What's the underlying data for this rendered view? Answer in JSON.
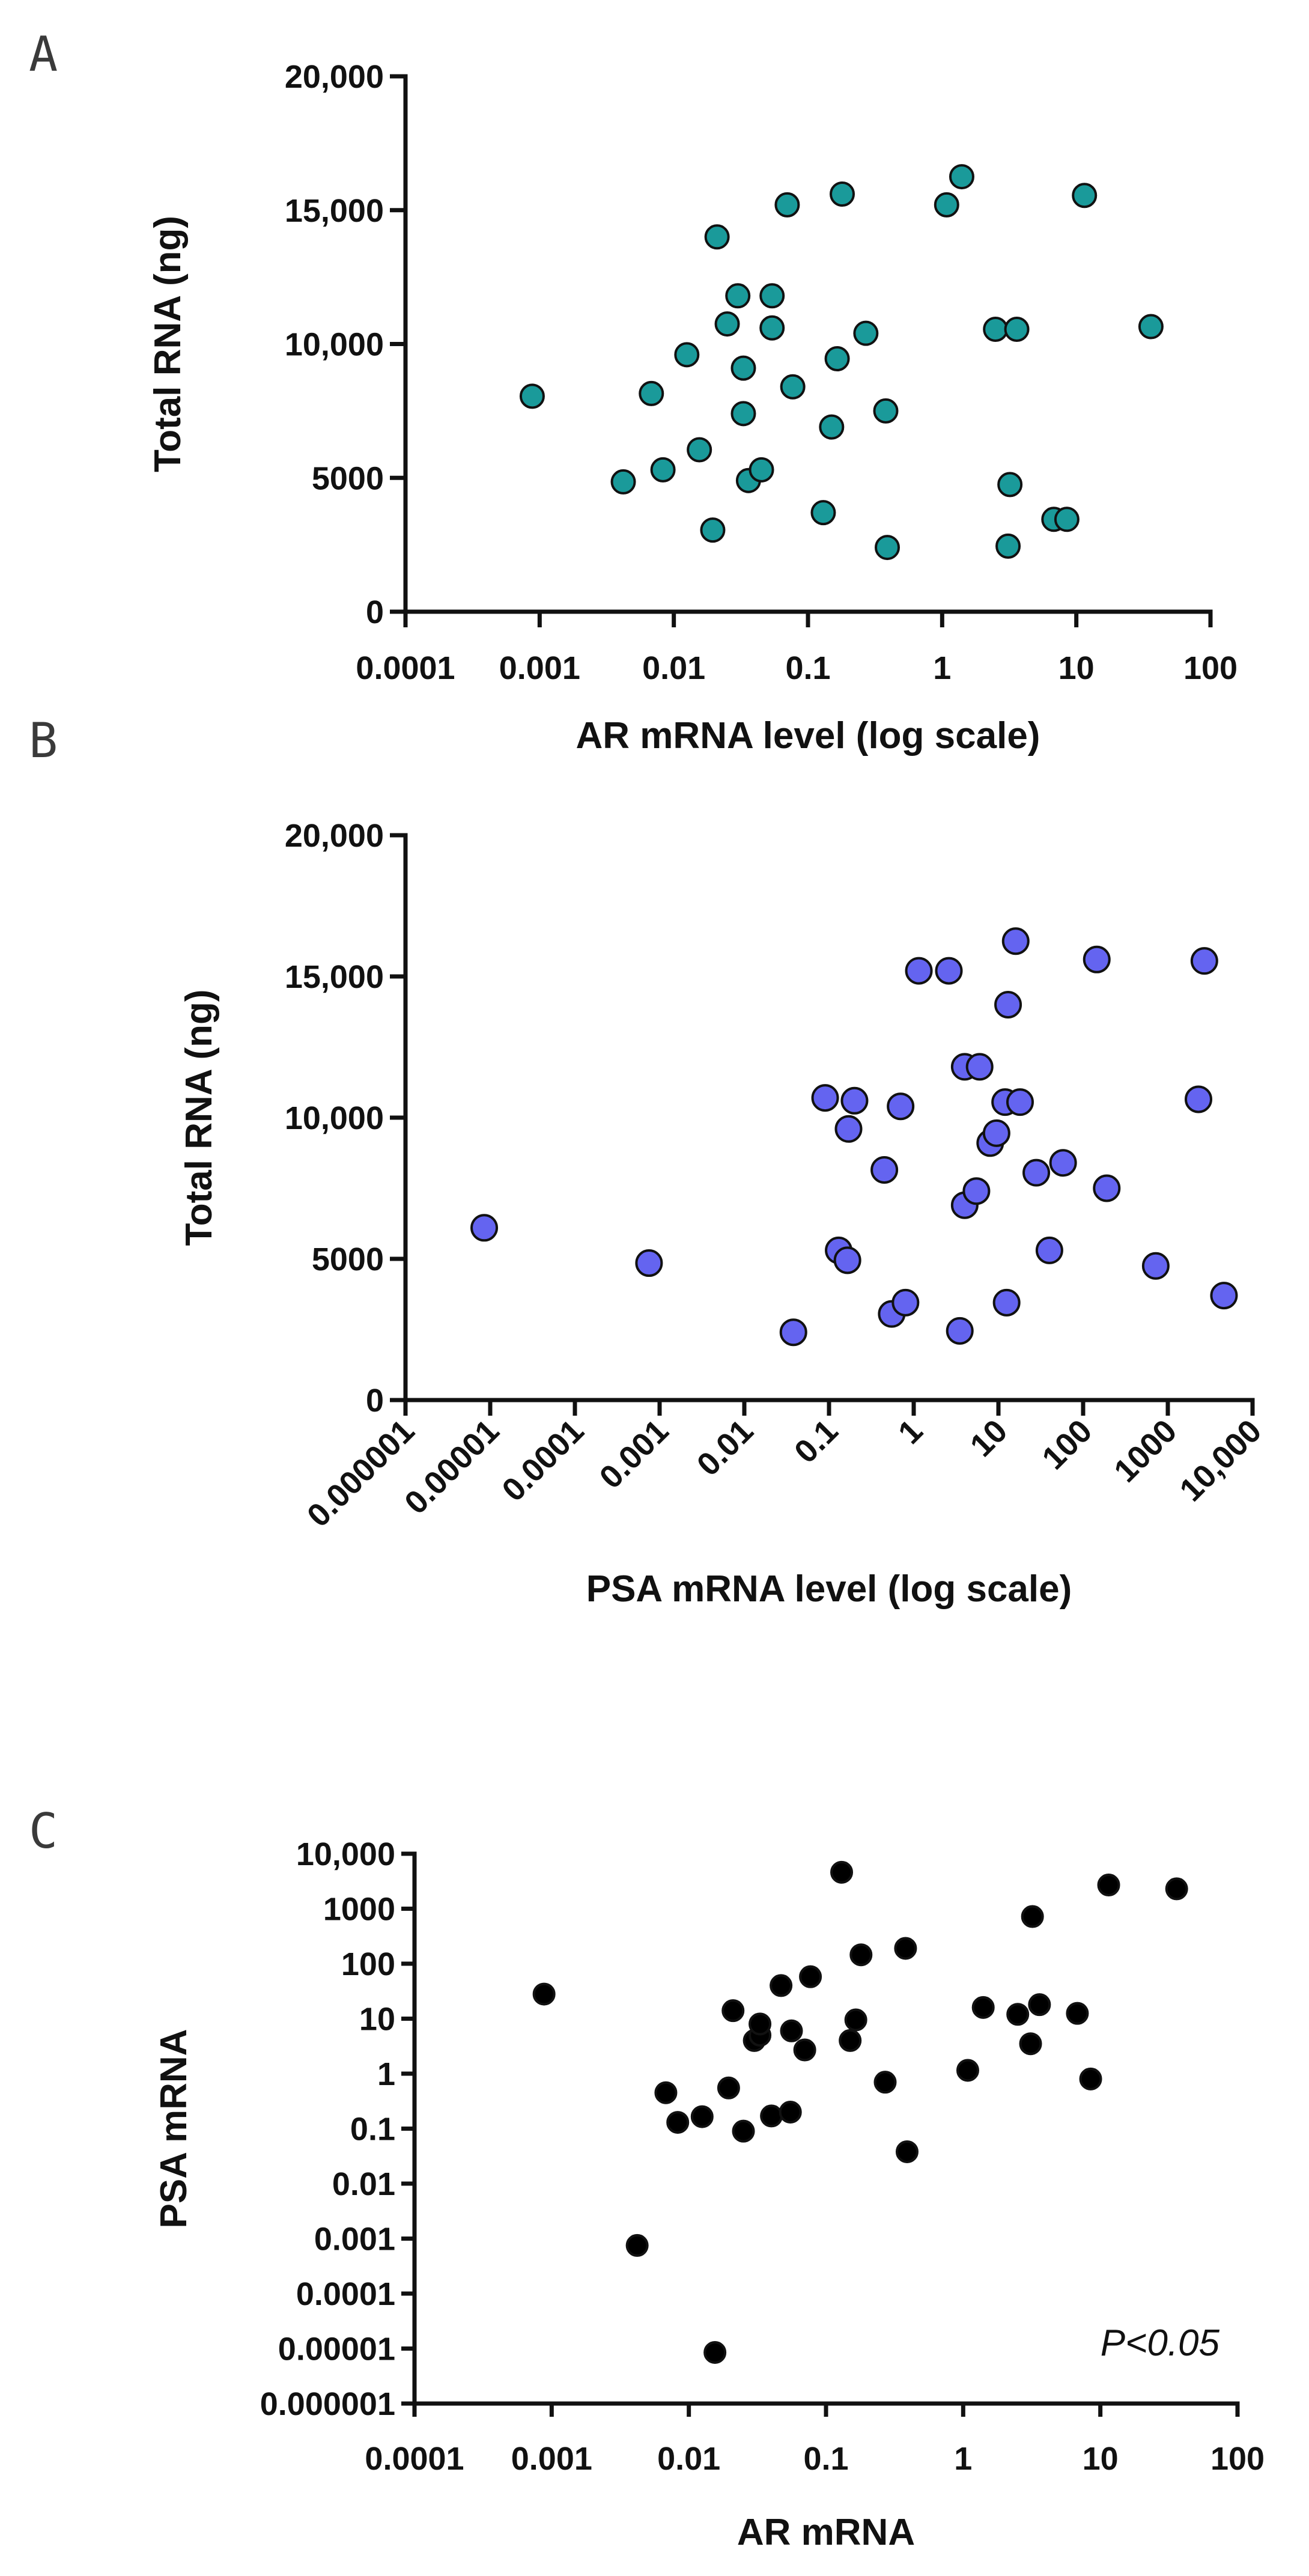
{
  "chart_data": [
    {
      "panel": "A",
      "type": "scatter",
      "xlabel": "AR mRNA level (log scale)",
      "ylabel": "Total RNA (ng)",
      "x_scale": "log",
      "xlim": [
        0.0001,
        100
      ],
      "ylim": [
        0,
        20000
      ],
      "x_ticks": [
        "0.0001",
        "0.001",
        "0.01",
        "0.1",
        "1",
        "10",
        "100"
      ],
      "y_ticks": [
        "0",
        "5000",
        "10,000",
        "15,000",
        "20,000"
      ],
      "y_tick_values": [
        0,
        5000,
        10000,
        15000,
        20000
      ],
      "marker_color": "#1a9a9a",
      "points": [
        {
          "x": 0.00088,
          "y": 8050
        },
        {
          "x": 0.0042,
          "y": 4850
        },
        {
          "x": 0.0068,
          "y": 8150
        },
        {
          "x": 0.0083,
          "y": 5300
        },
        {
          "x": 0.0125,
          "y": 9600
        },
        {
          "x": 0.0155,
          "y": 6050
        },
        {
          "x": 0.0195,
          "y": 3050
        },
        {
          "x": 0.021,
          "y": 14000
        },
        {
          "x": 0.025,
          "y": 10750
        },
        {
          "x": 0.03,
          "y": 11800
        },
        {
          "x": 0.033,
          "y": 9100
        },
        {
          "x": 0.033,
          "y": 7400
        },
        {
          "x": 0.036,
          "y": 4900
        },
        {
          "x": 0.045,
          "y": 5300
        },
        {
          "x": 0.054,
          "y": 11800
        },
        {
          "x": 0.054,
          "y": 10600
        },
        {
          "x": 0.07,
          "y": 15200
        },
        {
          "x": 0.077,
          "y": 8400
        },
        {
          "x": 0.13,
          "y": 3700
        },
        {
          "x": 0.15,
          "y": 6900
        },
        {
          "x": 0.165,
          "y": 9450
        },
        {
          "x": 0.18,
          "y": 15600
        },
        {
          "x": 0.27,
          "y": 10400
        },
        {
          "x": 0.38,
          "y": 7500
        },
        {
          "x": 0.39,
          "y": 2400
        },
        {
          "x": 1.08,
          "y": 15200
        },
        {
          "x": 1.4,
          "y": 16250
        },
        {
          "x": 2.5,
          "y": 10550
        },
        {
          "x": 3.1,
          "y": 2450
        },
        {
          "x": 3.2,
          "y": 4750
        },
        {
          "x": 3.6,
          "y": 10550
        },
        {
          "x": 6.8,
          "y": 3450
        },
        {
          "x": 8.5,
          "y": 3450
        },
        {
          "x": 11.5,
          "y": 15550
        },
        {
          "x": 36,
          "y": 10650
        }
      ]
    },
    {
      "panel": "B",
      "type": "scatter",
      "xlabel": "PSA mRNA level (log scale)",
      "ylabel": "Total RNA (ng)",
      "x_scale": "log",
      "xlim": [
        1e-06,
        10000
      ],
      "ylim": [
        0,
        20000
      ],
      "x_ticks": [
        "0.000001",
        "0.00001",
        "0.0001",
        "0.001",
        "0.01",
        "0.1",
        "1",
        "10",
        "100",
        "1000",
        "10,000"
      ],
      "y_ticks": [
        "0",
        "5000",
        "10,000",
        "15,000",
        "20,000"
      ],
      "y_tick_values": [
        0,
        5000,
        10000,
        15000,
        20000
      ],
      "marker_color": "#6464f0",
      "points": [
        {
          "x": 8.5e-06,
          "y": 6100
        },
        {
          "x": 0.00075,
          "y": 4850
        },
        {
          "x": 0.038,
          "y": 2400
        },
        {
          "x": 0.09,
          "y": 10700
        },
        {
          "x": 0.13,
          "y": 5300
        },
        {
          "x": 0.165,
          "y": 4950
        },
        {
          "x": 0.17,
          "y": 9600
        },
        {
          "x": 0.2,
          "y": 10600
        },
        {
          "x": 0.45,
          "y": 8150
        },
        {
          "x": 0.55,
          "y": 3050
        },
        {
          "x": 0.7,
          "y": 10400
        },
        {
          "x": 0.8,
          "y": 3450
        },
        {
          "x": 1.15,
          "y": 15200
        },
        {
          "x": 2.6,
          "y": 15200
        },
        {
          "x": 3.5,
          "y": 2450
        },
        {
          "x": 4,
          "y": 11800
        },
        {
          "x": 4,
          "y": 6900
        },
        {
          "x": 5.5,
          "y": 7400
        },
        {
          "x": 6,
          "y": 11800
        },
        {
          "x": 8,
          "y": 9100
        },
        {
          "x": 9.5,
          "y": 9450
        },
        {
          "x": 12,
          "y": 10550
        },
        {
          "x": 12.5,
          "y": 3450
        },
        {
          "x": 13,
          "y": 14000
        },
        {
          "x": 16,
          "y": 16250
        },
        {
          "x": 18,
          "y": 10550
        },
        {
          "x": 28,
          "y": 8050
        },
        {
          "x": 40,
          "y": 5300
        },
        {
          "x": 58,
          "y": 8400
        },
        {
          "x": 145,
          "y": 15600
        },
        {
          "x": 190,
          "y": 7500
        },
        {
          "x": 720,
          "y": 4750
        },
        {
          "x": 2300,
          "y": 10650
        },
        {
          "x": 2700,
          "y": 15550
        },
        {
          "x": 4600,
          "y": 3700
        }
      ]
    },
    {
      "panel": "C",
      "type": "scatter",
      "xlabel": "AR mRNA",
      "ylabel": "PSA mRNA",
      "x_scale": "log",
      "y_scale": "log",
      "xlim": [
        0.0001,
        100
      ],
      "ylim": [
        1e-06,
        10000
      ],
      "x_ticks": [
        "0.0001",
        "0.001",
        "0.01",
        "0.1",
        "1",
        "10",
        "100"
      ],
      "y_ticks": [
        "0.000001",
        "0.00001",
        "0.0001",
        "0.001",
        "0.01",
        "0.1",
        "1",
        "10",
        "100",
        "1000",
        "10,000"
      ],
      "marker_color": "#000000",
      "xlabel_color": "#1a9aa8",
      "ylabel_color": "#6464f0",
      "annotation": "P<0.05",
      "points": [
        {
          "x": 0.00088,
          "y": 28
        },
        {
          "x": 0.0042,
          "y": 0.00075
        },
        {
          "x": 0.0068,
          "y": 0.45
        },
        {
          "x": 0.0083,
          "y": 0.13
        },
        {
          "x": 0.0125,
          "y": 0.165
        },
        {
          "x": 0.0155,
          "y": 8.5e-06
        },
        {
          "x": 0.0195,
          "y": 0.55
        },
        {
          "x": 0.021,
          "y": 14
        },
        {
          "x": 0.025,
          "y": 0.09
        },
        {
          "x": 0.03,
          "y": 4
        },
        {
          "x": 0.033,
          "y": 5
        },
        {
          "x": 0.033,
          "y": 8
        },
        {
          "x": 0.04,
          "y": 0.17
        },
        {
          "x": 0.047,
          "y": 40
        },
        {
          "x": 0.055,
          "y": 0.2
        },
        {
          "x": 0.056,
          "y": 6
        },
        {
          "x": 0.07,
          "y": 2.7
        },
        {
          "x": 0.077,
          "y": 58
        },
        {
          "x": 0.13,
          "y": 4600
        },
        {
          "x": 0.15,
          "y": 4
        },
        {
          "x": 0.165,
          "y": 9.5
        },
        {
          "x": 0.18,
          "y": 145
        },
        {
          "x": 0.27,
          "y": 0.7
        },
        {
          "x": 0.38,
          "y": 190
        },
        {
          "x": 0.39,
          "y": 0.038
        },
        {
          "x": 1.08,
          "y": 1.15
        },
        {
          "x": 1.4,
          "y": 16
        },
        {
          "x": 2.5,
          "y": 12
        },
        {
          "x": 3.1,
          "y": 3.5
        },
        {
          "x": 3.2,
          "y": 720
        },
        {
          "x": 3.6,
          "y": 18
        },
        {
          "x": 6.8,
          "y": 12.5
        },
        {
          "x": 8.5,
          "y": 0.8
        },
        {
          "x": 11.5,
          "y": 2700
        },
        {
          "x": 36,
          "y": 2300
        }
      ]
    }
  ],
  "panel_labels": [
    "A",
    "B",
    "C"
  ]
}
